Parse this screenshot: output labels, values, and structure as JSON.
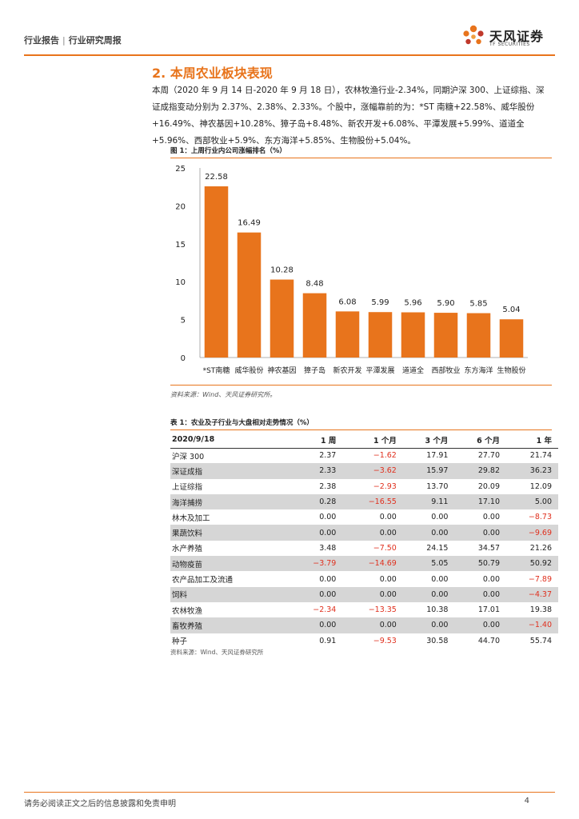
{
  "header": {
    "category": "行业报告",
    "separator": "|",
    "report_type": "行业研究周报",
    "logo_name": "天风证券",
    "logo_sub": "TF SECURITIES"
  },
  "section_title": "2. 本周农业板块表现",
  "paragraph": "本周（2020 年 9 月 14 日-2020 年 9 月 18 日），农林牧渔行业-2.34%，同期沪深 300、上证综指、深证成指变动分别为 2.37%、2.38%、2.33%。个股中，涨幅靠前的为：*ST 南糖+22.58%、威华股份+16.49%、神农基因+10.28%、獐子岛+8.48%、新农开发+6.08%、平潭发展+5.99%、道道全+5.96%、西部牧业+5.9%、东方海洋+5.85%、生物股份+5.04%。",
  "figure": {
    "title": "图 1：上周行业内公司涨幅排名（%）",
    "source": "资料来源：Wind、天风证券研究所。"
  },
  "chart_data": {
    "type": "bar",
    "title": "",
    "xlabel": "",
    "ylabel": "",
    "categories": [
      "*ST南糖",
      "威华股份",
      "神农基因",
      "獐子岛",
      "新农开发",
      "平潭发展",
      "道道全",
      "西部牧业",
      "东方海洋",
      "生物股份"
    ],
    "values": [
      22.58,
      16.49,
      10.28,
      8.48,
      6.08,
      5.99,
      5.96,
      5.9,
      5.85,
      5.04
    ],
    "value_labels": [
      "22.58",
      "16.49",
      "10.28",
      "8.48",
      "6.08",
      "5.99",
      "5.96",
      "5.90",
      "5.85",
      "5.04"
    ],
    "ylim": [
      0,
      25
    ],
    "yticks": [
      "0",
      "5",
      "10",
      "15",
      "20",
      "25"
    ],
    "grid": false,
    "bar_color": "#e8741c"
  },
  "table": {
    "title": "表 1：农业及子行业与大盘相对走势情况（%）",
    "headers": [
      "2020/9/18",
      "1 周",
      "1 个月",
      "3 个月",
      "6 个月",
      "1 年"
    ],
    "rows": [
      {
        "name": "沪深 300",
        "v": [
          "2.37",
          "−1.62",
          "17.91",
          "27.70",
          "21.74"
        ],
        "shade": false
      },
      {
        "name": "深证成指",
        "v": [
          "2.33",
          "−3.62",
          "15.97",
          "29.82",
          "36.23"
        ],
        "shade": true
      },
      {
        "name": "上证综指",
        "v": [
          "2.38",
          "−2.93",
          "13.70",
          "20.09",
          "12.09"
        ],
        "shade": false
      },
      {
        "name": "海洋捕捞",
        "v": [
          "0.28",
          "−16.55",
          "9.11",
          "17.10",
          "5.00"
        ],
        "shade": true
      },
      {
        "name": "林木及加工",
        "v": [
          "0.00",
          "0.00",
          "0.00",
          "0.00",
          "−8.73"
        ],
        "shade": false
      },
      {
        "name": "果蔬饮料",
        "v": [
          "0.00",
          "0.00",
          "0.00",
          "0.00",
          "−9.69"
        ],
        "shade": true
      },
      {
        "name": "水产养殖",
        "v": [
          "3.48",
          "−7.50",
          "24.15",
          "34.57",
          "21.26"
        ],
        "shade": false
      },
      {
        "name": "动物疫苗",
        "v": [
          "−3.79",
          "−14.69",
          "5.05",
          "50.79",
          "50.92"
        ],
        "shade": true
      },
      {
        "name": "农产品加工及流通",
        "v": [
          "0.00",
          "0.00",
          "0.00",
          "0.00",
          "−7.89"
        ],
        "shade": false
      },
      {
        "name": "饲料",
        "v": [
          "0.00",
          "0.00",
          "0.00",
          "0.00",
          "−4.37"
        ],
        "shade": true
      },
      {
        "name": "农林牧渔",
        "v": [
          "−2.34",
          "−13.35",
          "10.38",
          "17.01",
          "19.38"
        ],
        "shade": false
      },
      {
        "name": "畜牧养殖",
        "v": [
          "0.00",
          "0.00",
          "0.00",
          "0.00",
          "−1.40"
        ],
        "shade": true
      },
      {
        "name": "种子",
        "v": [
          "0.91",
          "−9.53",
          "30.58",
          "44.70",
          "55.74"
        ],
        "shade": false
      }
    ],
    "source": "资料来源：Wind、天风证券研究所",
    "negative_color": "#e0301e"
  },
  "footer": {
    "disclaimer": "请务必阅读正文之后的信息披露和免责申明",
    "page": "4"
  }
}
